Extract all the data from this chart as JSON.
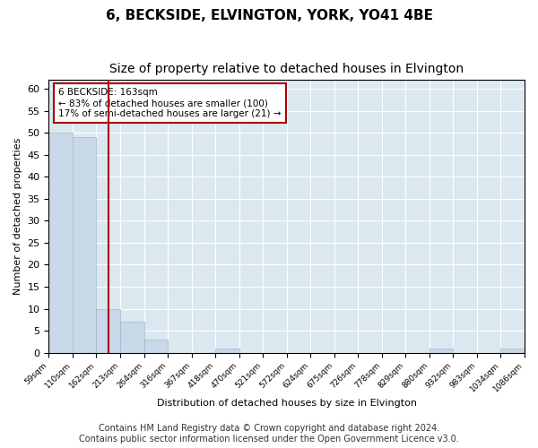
{
  "title": "6, BECKSIDE, ELVINGTON, YORK, YO41 4BE",
  "subtitle": "Size of property relative to detached houses in Elvington",
  "xlabel": "Distribution of detached houses by size in Elvington",
  "ylabel": "Number of detached properties",
  "bar_color": "#c8d8e8",
  "bar_edge_color": "#a0b8cc",
  "vline_color": "#aa0000",
  "vline_x_index": 2,
  "annotation_box_text": "6 BECKSIDE: 163sqm\n← 83% of detached houses are smaller (100)\n17% of semi-detached houses are larger (21) →",
  "annotation_box_color": "white",
  "annotation_box_edge_color": "#aa0000",
  "bin_labels": [
    "59sqm",
    "110sqm",
    "162sqm",
    "213sqm",
    "264sqm",
    "316sqm",
    "367sqm",
    "418sqm",
    "470sqm",
    "521sqm",
    "572sqm",
    "624sqm",
    "675sqm",
    "726sqm",
    "778sqm",
    "829sqm",
    "880sqm",
    "932sqm",
    "983sqm",
    "1034sqm",
    "1086sqm"
  ],
  "counts": [
    50,
    49,
    10,
    7,
    3,
    0,
    0,
    1,
    0,
    0,
    0,
    0,
    0,
    0,
    0,
    0,
    1,
    0,
    0,
    1
  ],
  "ylim": [
    0,
    62
  ],
  "yticks": [
    0,
    5,
    10,
    15,
    20,
    25,
    30,
    35,
    40,
    45,
    50,
    55,
    60
  ],
  "footer_line1": "Contains HM Land Registry data © Crown copyright and database right 2024.",
  "footer_line2": "Contains public sector information licensed under the Open Government Licence v3.0.",
  "background_color": "#dce8f0",
  "grid_color": "white",
  "fig_bg_color": "white",
  "title_fontsize": 11,
  "subtitle_fontsize": 10,
  "footer_fontsize": 7
}
